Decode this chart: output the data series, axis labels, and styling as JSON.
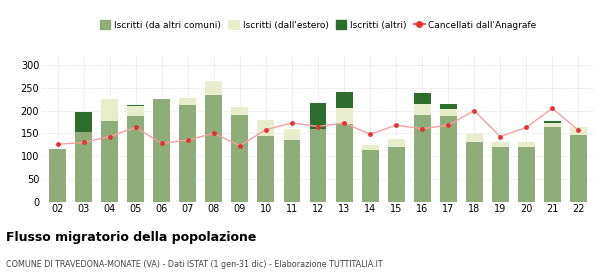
{
  "years": [
    "02",
    "03",
    "04",
    "05",
    "06",
    "07",
    "08",
    "09",
    "10",
    "11",
    "12",
    "13",
    "14",
    "15",
    "16",
    "17",
    "18",
    "19",
    "20",
    "21",
    "22"
  ],
  "iscritti_altri_comuni": [
    116,
    152,
    178,
    188,
    226,
    212,
    234,
    190,
    145,
    135,
    160,
    170,
    114,
    120,
    190,
    188,
    130,
    120,
    120,
    165,
    147
  ],
  "iscritti_estero_vals": [
    0,
    0,
    47,
    22,
    0,
    15,
    30,
    18,
    35,
    25,
    0,
    35,
    10,
    18,
    25,
    15,
    18,
    12,
    12,
    8,
    18
  ],
  "iscritti_altri_vals": [
    0,
    46,
    0,
    2,
    0,
    1,
    2,
    0,
    0,
    0,
    57,
    35,
    0,
    0,
    24,
    12,
    0,
    0,
    0,
    5,
    0
  ],
  "cancellati": [
    126,
    130,
    143,
    163,
    128,
    135,
    150,
    123,
    158,
    173,
    165,
    173,
    148,
    168,
    160,
    168,
    200,
    143,
    163,
    205,
    157
  ],
  "color_altri_comuni": "#8fad78",
  "color_estero": "#e8eecc",
  "color_altri": "#2d6e2d",
  "color_cancellati": "#e83030",
  "color_line": "#f4a0a0",
  "legend_labels": [
    "Iscritti (da altri comuni)",
    "Iscritti (dall'estero)",
    "Iscritti (altri)",
    "Cancellati dall'Anagrafe"
  ],
  "ylim": [
    0,
    320
  ],
  "yticks": [
    0,
    50,
    100,
    150,
    200,
    250,
    300
  ],
  "title": "Flusso migratorio della popolazione",
  "subtitle": "COMUNE DI TRAVEDONA-MONATE (VA) - Dati ISTAT (1 gen-31 dic) - Elaborazione TUTTITALIA.IT"
}
